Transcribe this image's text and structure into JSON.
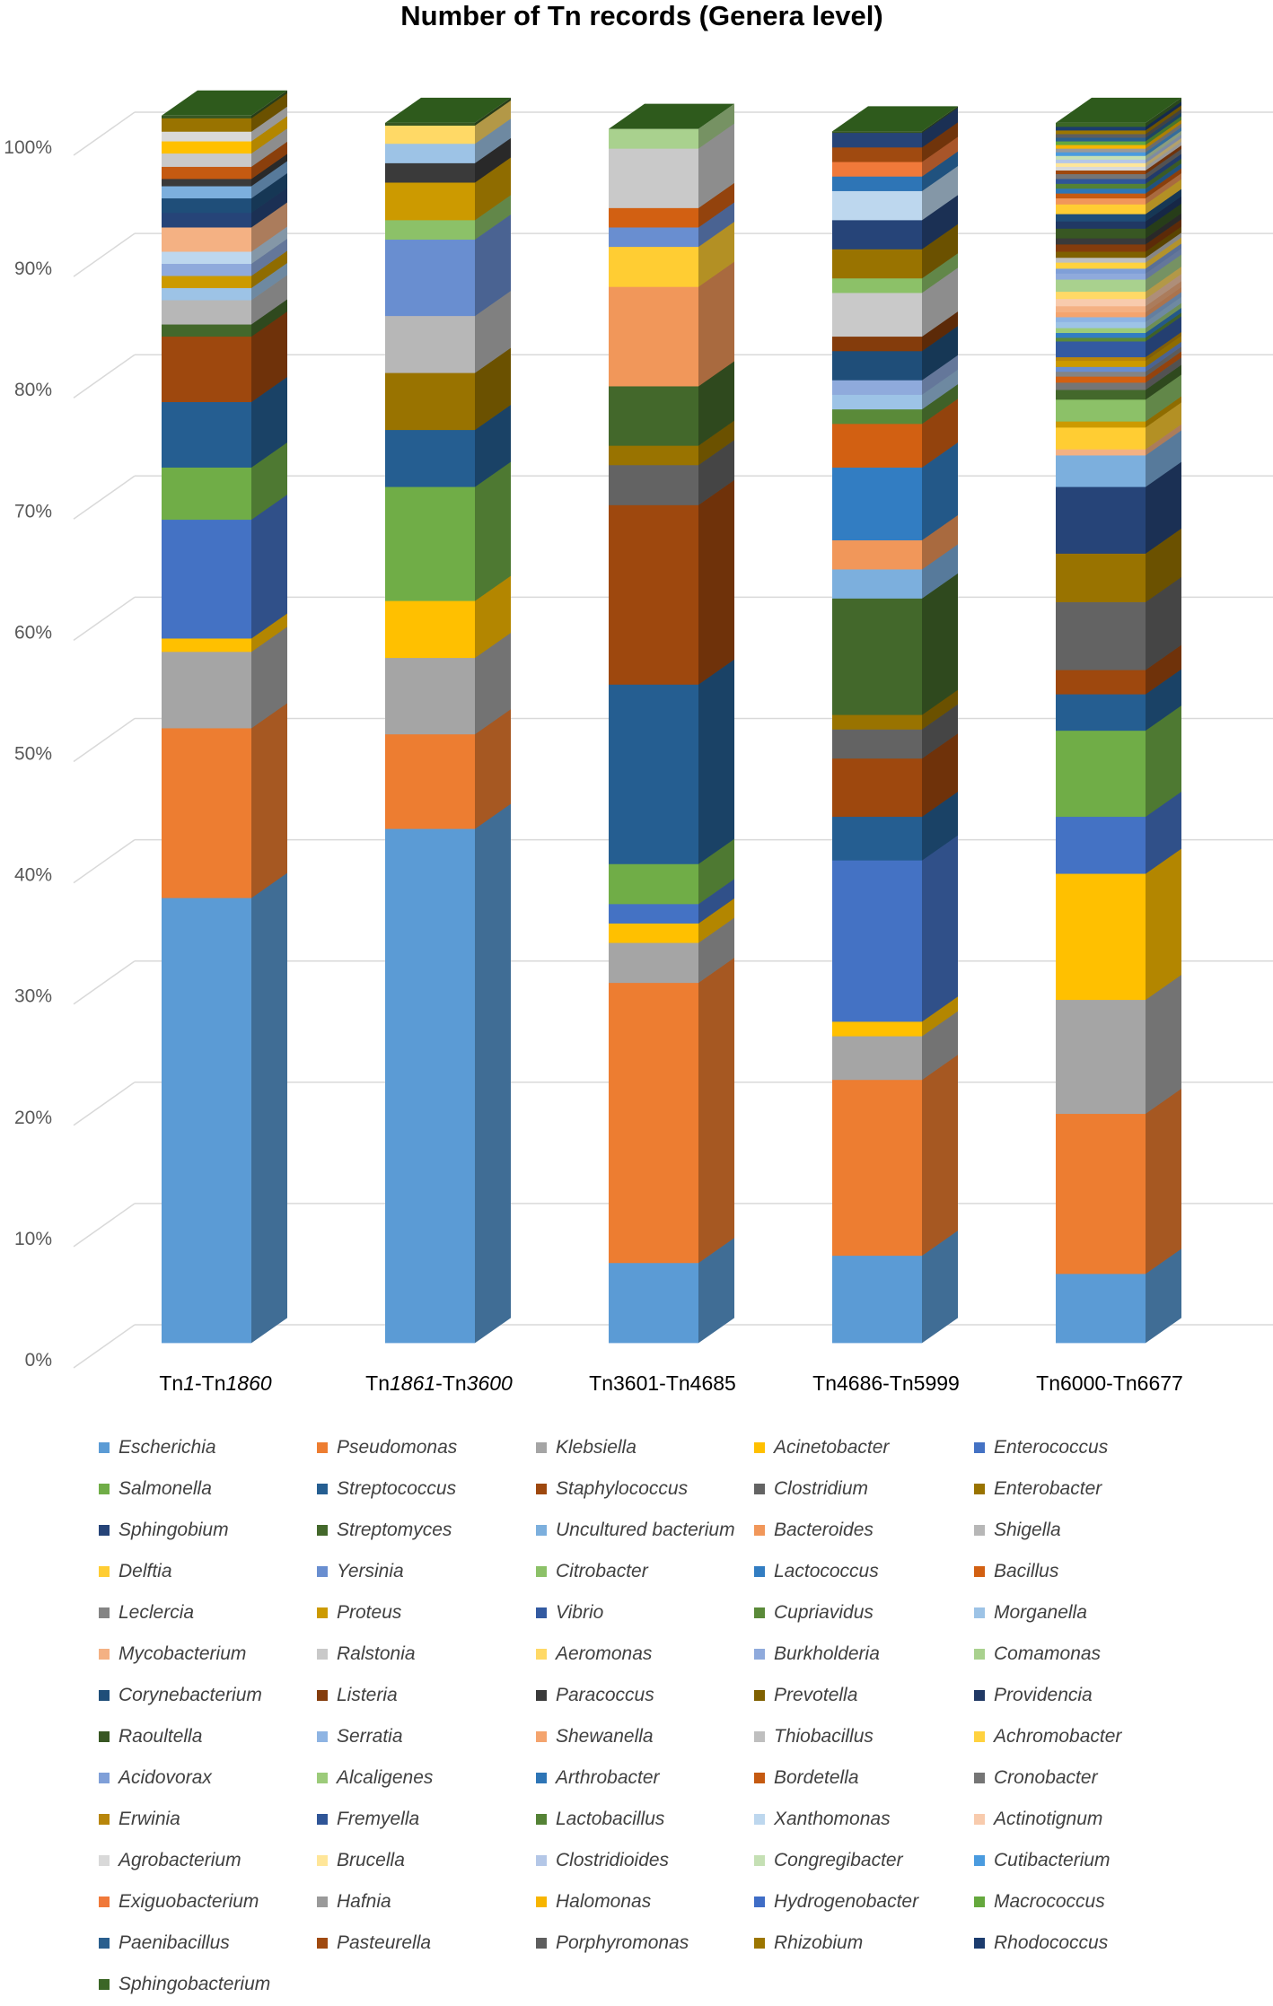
{
  "chart_data": {
    "type": "bar",
    "stacked": true,
    "percent": true,
    "title": "Number of Tn records (Genera level)",
    "xlabel": "",
    "ylabel": "",
    "ylim": [
      0,
      100
    ],
    "yticks": [
      "0%",
      "10%",
      "20%",
      "30%",
      "40%",
      "50%",
      "60%",
      "70%",
      "80%",
      "90%",
      "100%"
    ],
    "categories": [
      {
        "parts": [
          [
            "Tn",
            false
          ],
          [
            "1",
            true
          ],
          [
            "-Tn",
            false
          ],
          [
            "1860",
            true
          ]
        ]
      },
      {
        "parts": [
          [
            "Tn",
            false
          ],
          [
            "1861",
            true
          ],
          [
            "-Tn",
            false
          ],
          [
            "3600",
            true
          ]
        ]
      },
      {
        "parts": [
          [
            "Tn3601-Tn4685",
            false
          ]
        ]
      },
      {
        "parts": [
          [
            "Tn4686-Tn5999",
            false
          ]
        ]
      },
      {
        "parts": [
          [
            "Tn6000-Tn6677",
            false
          ]
        ]
      }
    ],
    "category_labels": [
      "Tn1-Tn1860",
      "Tn1861-Tn3600",
      "Tn3601-Tn4685",
      "Tn4686-Tn5999",
      "Tn6000-Tn6677"
    ],
    "genera": [
      {
        "name": "Escherichia",
        "color": "#5B9BD5"
      },
      {
        "name": "Pseudomonas",
        "color": "#ED7D31"
      },
      {
        "name": "Klebsiella",
        "color": "#A5A5A5"
      },
      {
        "name": "Acinetobacter",
        "color": "#FFC000"
      },
      {
        "name": "Enterococcus",
        "color": "#4472C4"
      },
      {
        "name": "Salmonella",
        "color": "#70AD47"
      },
      {
        "name": "Streptococcus",
        "color": "#255E91"
      },
      {
        "name": "Staphylococcus",
        "color": "#9E480E"
      },
      {
        "name": "Clostridium",
        "color": "#636363"
      },
      {
        "name": "Enterobacter",
        "color": "#997300"
      },
      {
        "name": "Sphingobium",
        "color": "#264478"
      },
      {
        "name": "Streptomyces",
        "color": "#43682B"
      },
      {
        "name": "Uncultured bacterium",
        "color": "#7CAFDD"
      },
      {
        "name": "Bacteroides",
        "color": "#F1975A"
      },
      {
        "name": "Shigella",
        "color": "#B7B7B7"
      },
      {
        "name": "Delftia",
        "color": "#FFCD33"
      },
      {
        "name": "Yersinia",
        "color": "#698ED0"
      },
      {
        "name": "Citrobacter",
        "color": "#8CC168"
      },
      {
        "name": "Lactococcus",
        "color": "#327DC2"
      },
      {
        "name": "Bacillus",
        "color": "#D26012"
      },
      {
        "name": "Leclercia",
        "color": "#848484"
      },
      {
        "name": "Proteus",
        "color": "#CC9A00"
      },
      {
        "name": "Vibrio",
        "color": "#335AA1"
      },
      {
        "name": "Cupriavidus",
        "color": "#5A8A39"
      },
      {
        "name": "Morganella",
        "color": "#9DC3E6"
      },
      {
        "name": "Mycobacterium",
        "color": "#F4B183"
      },
      {
        "name": "Ralstonia",
        "color": "#C9C9C9"
      },
      {
        "name": "Aeromonas",
        "color": "#FFD966"
      },
      {
        "name": "Burkholderia",
        "color": "#8FAADC"
      },
      {
        "name": "Comamonas",
        "color": "#A9D18E"
      },
      {
        "name": "Corynebacterium",
        "color": "#1F4E79"
      },
      {
        "name": "Listeria",
        "color": "#843C0C"
      },
      {
        "name": "Paracoccus",
        "color": "#3A3A3A"
      },
      {
        "name": "Prevotella",
        "color": "#7F6000"
      },
      {
        "name": "Providencia",
        "color": "#203864"
      },
      {
        "name": "Raoultella",
        "color": "#385723"
      },
      {
        "name": "Serratia",
        "color": "#8EB4E3"
      },
      {
        "name": "Shewanella",
        "color": "#F4A46E"
      },
      {
        "name": "Thiobacillus",
        "color": "#BFBFBF"
      },
      {
        "name": "Achromobacter",
        "color": "#FFD23F"
      },
      {
        "name": "Acidovorax",
        "color": "#7F9FD8"
      },
      {
        "name": "Alcaligenes",
        "color": "#9CCB7A"
      },
      {
        "name": "Arthrobacter",
        "color": "#2E75B6"
      },
      {
        "name": "Bordetella",
        "color": "#C55A11"
      },
      {
        "name": "Cronobacter",
        "color": "#757575"
      },
      {
        "name": "Erwinia",
        "color": "#B8860B"
      },
      {
        "name": "Fremyella",
        "color": "#2F5597"
      },
      {
        "name": "Lactobacillus",
        "color": "#548235"
      },
      {
        "name": "Xanthomonas",
        "color": "#BDD7EE"
      },
      {
        "name": "Actinotignum",
        "color": "#F8CBAD"
      },
      {
        "name": "Agrobacterium",
        "color": "#D9D9D9"
      },
      {
        "name": "Brucella",
        "color": "#FFE699"
      },
      {
        "name": "Clostridioides",
        "color": "#B4C7E7"
      },
      {
        "name": "Congregibacter",
        "color": "#C5E0B4"
      },
      {
        "name": "Cutibacterium",
        "color": "#4A9BDF"
      },
      {
        "name": "Exiguobacterium",
        "color": "#F0793A"
      },
      {
        "name": "Hafnia",
        "color": "#9A9A9A"
      },
      {
        "name": "Halomonas",
        "color": "#F7B500"
      },
      {
        "name": "Hydrogenobacter",
        "color": "#3F6DC6"
      },
      {
        "name": "Macrococcus",
        "color": "#65A83D"
      },
      {
        "name": "Paenibacillus",
        "color": "#2A5F8E"
      },
      {
        "name": "Pasteurella",
        "color": "#A04A10"
      },
      {
        "name": "Porphyromonas",
        "color": "#5E5E5E"
      },
      {
        "name": "Rhizobium",
        "color": "#9C7600"
      },
      {
        "name": "Rhodococcus",
        "color": "#1C3C6E"
      },
      {
        "name": "Sphingobacterium",
        "color": "#3B6626"
      }
    ],
    "series": [
      {
        "name": "Tn1-Tn1860",
        "segments": [
          [
            "Escherichia",
            36.7
          ],
          [
            "Pseudomonas",
            14.0
          ],
          [
            "Klebsiella",
            6.3
          ],
          [
            "Acinetobacter",
            1.1
          ],
          [
            "Enterococcus",
            9.8
          ],
          [
            "Salmonella",
            4.3
          ],
          [
            "Streptococcus",
            5.4
          ],
          [
            "Staphylococcus",
            5.4
          ],
          [
            "Streptomyces",
            1.0
          ],
          [
            "Shigella",
            2.0
          ],
          [
            "Morganella",
            1.0
          ],
          [
            "Proteus",
            1.0
          ],
          [
            "Burkholderia",
            1.0
          ],
          [
            "Xanthomonas",
            1.0
          ],
          [
            "Mycobacterium",
            2.0
          ],
          [
            "Sphingobium",
            1.2
          ],
          [
            "Corynebacterium",
            1.2
          ],
          [
            "Uncultured bacterium",
            1.0
          ],
          [
            "Paracoccus",
            0.6
          ],
          [
            "Bordetella",
            1.0
          ],
          [
            "Ralstonia",
            1.1
          ],
          [
            "Acinetobacter",
            1.0
          ],
          [
            "Agrobacterium",
            0.8
          ],
          [
            "Enterobacter",
            1.1
          ],
          [
            "Raoultella",
            0.2
          ]
        ]
      },
      {
        "name": "Tn1861-Tn3600",
        "segments": [
          [
            "Escherichia",
            42.4
          ],
          [
            "Pseudomonas",
            7.8
          ],
          [
            "Klebsiella",
            6.3
          ],
          [
            "Acinetobacter",
            4.7
          ],
          [
            "Salmonella",
            9.4
          ],
          [
            "Streptococcus",
            4.7
          ],
          [
            "Enterobacter",
            4.7
          ],
          [
            "Shigella",
            4.7
          ],
          [
            "Yersinia",
            6.3
          ],
          [
            "Citrobacter",
            1.6
          ],
          [
            "Proteus",
            3.1
          ],
          [
            "Paracoccus",
            1.6
          ],
          [
            "Morganella",
            1.6
          ],
          [
            "Aeromonas",
            1.5
          ],
          [
            "Raoultella",
            0.2
          ]
        ]
      },
      {
        "name": "Tn3601-Tn4685",
        "segments": [
          [
            "Escherichia",
            6.6
          ],
          [
            "Pseudomonas",
            23.1
          ],
          [
            "Klebsiella",
            3.3
          ],
          [
            "Acinetobacter",
            1.6
          ],
          [
            "Enterococcus",
            1.6
          ],
          [
            "Salmonella",
            3.3
          ],
          [
            "Streptococcus",
            14.8
          ],
          [
            "Staphylococcus",
            14.8
          ],
          [
            "Clostridium",
            3.3
          ],
          [
            "Enterobacter",
            1.6
          ],
          [
            "Streptomyces",
            4.9
          ],
          [
            "Bacteroides",
            8.2
          ],
          [
            "Delftia",
            3.3
          ],
          [
            "Yersinia",
            1.6
          ],
          [
            "Bacillus",
            1.6
          ],
          [
            "Ralstonia",
            4.9
          ],
          [
            "Comamonas",
            1.6
          ]
        ]
      },
      {
        "name": "Tn4686-Tn5999",
        "segments": [
          [
            "Escherichia",
            7.2
          ],
          [
            "Pseudomonas",
            14.5
          ],
          [
            "Klebsiella",
            3.6
          ],
          [
            "Acinetobacter",
            1.2
          ],
          [
            "Enterococcus",
            13.3
          ],
          [
            "Streptococcus",
            3.6
          ],
          [
            "Staphylococcus",
            4.8
          ],
          [
            "Clostridium",
            2.4
          ],
          [
            "Enterobacter",
            1.2
          ],
          [
            "Streptomyces",
            9.6
          ],
          [
            "Uncultured bacterium",
            2.4
          ],
          [
            "Bacteroides",
            2.4
          ],
          [
            "Lactococcus",
            6.0
          ],
          [
            "Bacillus",
            3.6
          ],
          [
            "Cupriavidus",
            1.2
          ],
          [
            "Morganella",
            1.2
          ],
          [
            "Burkholderia",
            1.2
          ],
          [
            "Corynebacterium",
            2.4
          ],
          [
            "Listeria",
            1.2
          ],
          [
            "Ralstonia",
            3.6
          ],
          [
            "Citrobacter",
            1.2
          ],
          [
            "Enterobacter",
            2.4
          ],
          [
            "Sphingobium",
            2.4
          ],
          [
            "Xanthomonas",
            2.4
          ],
          [
            "Arthrobacter",
            1.2
          ],
          [
            "Exiguobacterium",
            1.2
          ],
          [
            "Pasteurella",
            1.2
          ],
          [
            "Sphingobium",
            1.2
          ],
          [
            "Raoultella",
            0.1
          ]
        ]
      },
      {
        "name": "Tn6000-Tn6677",
        "segments": [
          [
            "Escherichia",
            5.7
          ],
          [
            "Pseudomonas",
            13.2
          ],
          [
            "Klebsiella",
            9.4
          ],
          [
            "Acinetobacter",
            10.4
          ],
          [
            "Enterococcus",
            4.7
          ],
          [
            "Salmonella",
            7.1
          ],
          [
            "Streptococcus",
            3.0
          ],
          [
            "Staphylococcus",
            2.0
          ],
          [
            "Clostridium",
            5.6
          ],
          [
            "Enterobacter",
            4.0
          ],
          [
            "Sphingobium",
            5.5
          ],
          [
            "Uncultured bacterium",
            2.6
          ],
          [
            "Mycobacterium",
            0.5
          ],
          [
            "Delftia",
            1.8
          ],
          [
            "Proteus",
            0.5
          ],
          [
            "Citrobacter",
            1.8
          ],
          [
            "Streptomyces",
            0.8
          ],
          [
            "Cronobacter",
            0.6
          ],
          [
            "Bacillus",
            0.5
          ],
          [
            "Leclercia",
            0.4
          ],
          [
            "Yersinia",
            0.4
          ],
          [
            "Proteus",
            0.5
          ],
          [
            "Erwinia",
            0.3
          ],
          [
            "Vibrio",
            1.3
          ],
          [
            "Cupriavidus",
            0.3
          ],
          [
            "Lactococcus",
            0.4
          ],
          [
            "Alcaligenes",
            0.4
          ],
          [
            "Morganella",
            0.5
          ],
          [
            "Serratia",
            0.4
          ],
          [
            "Shewanella",
            0.4
          ],
          [
            "Mycobacterium",
            0.5
          ],
          [
            "Actinotignum",
            0.6
          ],
          [
            "Aeromonas",
            0.6
          ],
          [
            "Comamonas",
            1.0
          ],
          [
            "Burkholderia",
            0.5
          ],
          [
            "Acidovorax",
            0.4
          ],
          [
            "Achromobacter",
            0.5
          ],
          [
            "Thiobacillus",
            0.4
          ],
          [
            "Prevotella",
            0.5
          ],
          [
            "Listeria",
            0.6
          ],
          [
            "Paracoccus",
            0.5
          ],
          [
            "Raoultella",
            0.8
          ],
          [
            "Providencia",
            0.6
          ],
          [
            "Corynebacterium",
            0.6
          ],
          [
            "Delftia",
            0.8
          ],
          [
            "Bacteroides",
            0.5
          ],
          [
            "Bordetella",
            0.4
          ],
          [
            "Arthrobacter",
            0.4
          ],
          [
            "Lactobacillus",
            0.4
          ],
          [
            "Fremyella",
            0.4
          ],
          [
            "Cronobacter",
            0.4
          ],
          [
            "Staphylococcus",
            0.3
          ],
          [
            "Agrobacterium",
            0.3
          ],
          [
            "Brucella",
            0.3
          ],
          [
            "Clostridioides",
            0.3
          ],
          [
            "Congregibacter",
            0.3
          ],
          [
            "Cutibacterium",
            0.3
          ],
          [
            "Hafnia",
            0.3
          ],
          [
            "Halomonas",
            0.3
          ],
          [
            "Macrococcus",
            0.3
          ],
          [
            "Paenibacillus",
            0.3
          ],
          [
            "Porphyromonas",
            0.3
          ],
          [
            "Rhizobium",
            0.3
          ],
          [
            "Rhodococcus",
            0.3
          ],
          [
            "Sphingobacterium",
            0.3
          ]
        ]
      }
    ]
  }
}
